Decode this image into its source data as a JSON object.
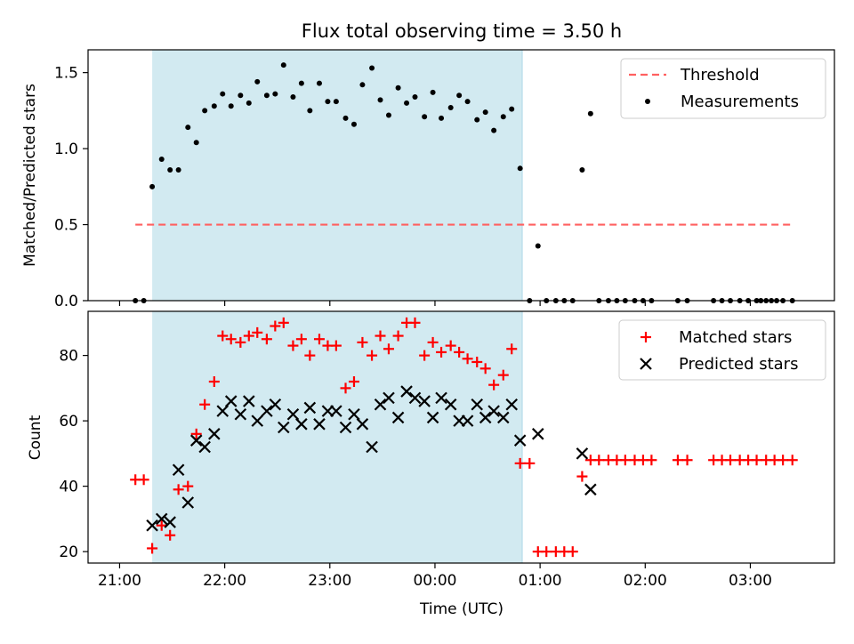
{
  "figure_title": "Flux total observing time = 3.50 h",
  "xlabel": "Time (UTC)",
  "x_tick_labels": [
    "21:00",
    "22:00",
    "23:00",
    "00:00",
    "01:00",
    "02:00",
    "03:00"
  ],
  "chart_data": [
    {
      "type": "scatter",
      "title": "Flux total observing time = 3.50 h",
      "ylabel": "Matched/Predicted stars",
      "xlim": [
        -0.3,
        6.8
      ],
      "ylim": [
        0,
        1.65
      ],
      "y_ticks": [
        0.0,
        0.5,
        1.0,
        1.5
      ],
      "y_tick_labels": [
        "0.0",
        "0.5",
        "1.0",
        "1.5"
      ],
      "legend_position": "top-right",
      "shaded_interval": [
        0.31,
        3.83
      ],
      "shaded_color": "#add8e6",
      "threshold": {
        "name": "Threshold",
        "y": 0.5,
        "x_start": 0.15,
        "x_end": 6.38,
        "color": "#ff6060",
        "style": "dashed"
      },
      "series": [
        {
          "name": "Measurements",
          "color": "#000000",
          "points": [
            [
              0.15,
              0.0
            ],
            [
              0.23,
              0.0
            ],
            [
              0.31,
              0.75
            ],
            [
              0.4,
              0.93
            ],
            [
              0.48,
              0.86
            ],
            [
              0.56,
              0.86
            ],
            [
              0.65,
              1.14
            ],
            [
              0.73,
              1.04
            ],
            [
              0.81,
              1.25
            ],
            [
              0.9,
              1.28
            ],
            [
              0.98,
              1.36
            ],
            [
              1.06,
              1.28
            ],
            [
              1.15,
              1.35
            ],
            [
              1.23,
              1.3
            ],
            [
              1.31,
              1.44
            ],
            [
              1.4,
              1.35
            ],
            [
              1.48,
              1.36
            ],
            [
              1.56,
              1.55
            ],
            [
              1.65,
              1.34
            ],
            [
              1.73,
              1.43
            ],
            [
              1.81,
              1.25
            ],
            [
              1.9,
              1.43
            ],
            [
              1.98,
              1.31
            ],
            [
              2.06,
              1.31
            ],
            [
              2.15,
              1.2
            ],
            [
              2.23,
              1.16
            ],
            [
              2.31,
              1.42
            ],
            [
              2.4,
              1.53
            ],
            [
              2.48,
              1.32
            ],
            [
              2.56,
              1.22
            ],
            [
              2.65,
              1.4
            ],
            [
              2.73,
              1.3
            ],
            [
              2.81,
              1.34
            ],
            [
              2.9,
              1.21
            ],
            [
              2.98,
              1.37
            ],
            [
              3.06,
              1.2
            ],
            [
              3.15,
              1.27
            ],
            [
              3.23,
              1.35
            ],
            [
              3.31,
              1.31
            ],
            [
              3.4,
              1.19
            ],
            [
              3.48,
              1.24
            ],
            [
              3.56,
              1.12
            ],
            [
              3.65,
              1.21
            ],
            [
              3.73,
              1.26
            ],
            [
              3.81,
              0.87
            ],
            [
              3.9,
              0.0
            ],
            [
              3.98,
              0.36
            ],
            [
              4.06,
              0.0
            ],
            [
              4.15,
              0.0
            ],
            [
              4.23,
              0.0
            ],
            [
              4.31,
              0.0
            ],
            [
              4.4,
              0.86
            ],
            [
              4.48,
              1.23
            ],
            [
              4.56,
              0.0
            ],
            [
              4.65,
              0.0
            ],
            [
              4.73,
              0.0
            ],
            [
              4.81,
              0.0
            ],
            [
              4.9,
              0.0
            ],
            [
              4.98,
              0.0
            ],
            [
              5.06,
              0.0
            ],
            [
              5.31,
              0.0
            ],
            [
              5.4,
              0.0
            ],
            [
              5.65,
              0.0
            ],
            [
              5.73,
              0.0
            ],
            [
              5.81,
              0.0
            ],
            [
              5.9,
              0.0
            ],
            [
              5.98,
              0.0
            ],
            [
              6.06,
              0.0
            ],
            [
              6.1,
              0.0
            ],
            [
              6.15,
              0.0
            ],
            [
              6.2,
              0.0
            ],
            [
              6.25,
              0.0
            ],
            [
              6.31,
              0.0
            ],
            [
              6.4,
              0.0
            ]
          ]
        }
      ]
    },
    {
      "type": "scatter",
      "ylabel": "Count",
      "xlim": [
        -0.3,
        6.8
      ],
      "ylim": [
        16.5,
        93.5
      ],
      "y_ticks": [
        20,
        40,
        60,
        80
      ],
      "y_tick_labels": [
        "20",
        "40",
        "60",
        "80"
      ],
      "legend_position": "top-right",
      "shaded_interval": [
        0.31,
        3.83
      ],
      "shaded_color": "#add8e6",
      "series": [
        {
          "name": "Matched stars",
          "marker": "plus",
          "color": "#ff0000",
          "points": [
            [
              0.15,
              42
            ],
            [
              0.23,
              42
            ],
            [
              0.31,
              21
            ],
            [
              0.4,
              28
            ],
            [
              0.48,
              25
            ],
            [
              0.56,
              39
            ],
            [
              0.65,
              40
            ],
            [
              0.73,
              56
            ],
            [
              0.81,
              65
            ],
            [
              0.9,
              72
            ],
            [
              0.98,
              86
            ],
            [
              1.06,
              85
            ],
            [
              1.15,
              84
            ],
            [
              1.23,
              86
            ],
            [
              1.31,
              87
            ],
            [
              1.4,
              85
            ],
            [
              1.48,
              89
            ],
            [
              1.56,
              90
            ],
            [
              1.65,
              83
            ],
            [
              1.73,
              85
            ],
            [
              1.81,
              80
            ],
            [
              1.9,
              85
            ],
            [
              1.98,
              83
            ],
            [
              2.06,
              83
            ],
            [
              2.15,
              70
            ],
            [
              2.23,
              72
            ],
            [
              2.31,
              84
            ],
            [
              2.4,
              80
            ],
            [
              2.48,
              86
            ],
            [
              2.56,
              82
            ],
            [
              2.65,
              86
            ],
            [
              2.73,
              90
            ],
            [
              2.81,
              90
            ],
            [
              2.9,
              80
            ],
            [
              2.98,
              84
            ],
            [
              3.06,
              81
            ],
            [
              3.15,
              83
            ],
            [
              3.23,
              81
            ],
            [
              3.31,
              79
            ],
            [
              3.4,
              78
            ],
            [
              3.48,
              76
            ],
            [
              3.56,
              71
            ],
            [
              3.65,
              74
            ],
            [
              3.73,
              82
            ],
            [
              3.81,
              47
            ],
            [
              3.9,
              47
            ],
            [
              3.98,
              20
            ],
            [
              4.06,
              20
            ],
            [
              4.15,
              20
            ],
            [
              4.23,
              20
            ],
            [
              4.31,
              20
            ],
            [
              4.4,
              43
            ],
            [
              4.48,
              48
            ],
            [
              4.56,
              48
            ],
            [
              4.65,
              48
            ],
            [
              4.73,
              48
            ],
            [
              4.81,
              48
            ],
            [
              4.9,
              48
            ],
            [
              4.98,
              48
            ],
            [
              5.06,
              48
            ],
            [
              5.31,
              48
            ],
            [
              5.4,
              48
            ],
            [
              5.65,
              48
            ],
            [
              5.73,
              48
            ],
            [
              5.81,
              48
            ],
            [
              5.9,
              48
            ],
            [
              5.98,
              48
            ],
            [
              6.06,
              48
            ],
            [
              6.15,
              48
            ],
            [
              6.23,
              48
            ],
            [
              6.31,
              48
            ],
            [
              6.4,
              48
            ]
          ]
        },
        {
          "name": "Predicted stars",
          "marker": "x",
          "color": "#000000",
          "points": [
            [
              0.31,
              28
            ],
            [
              0.4,
              30
            ],
            [
              0.48,
              29
            ],
            [
              0.56,
              45
            ],
            [
              0.65,
              35
            ],
            [
              0.73,
              54
            ],
            [
              0.81,
              52
            ],
            [
              0.9,
              56
            ],
            [
              0.98,
              63
            ],
            [
              1.06,
              66
            ],
            [
              1.15,
              62
            ],
            [
              1.23,
              66
            ],
            [
              1.31,
              60
            ],
            [
              1.4,
              63
            ],
            [
              1.48,
              65
            ],
            [
              1.56,
              58
            ],
            [
              1.65,
              62
            ],
            [
              1.73,
              59
            ],
            [
              1.81,
              64
            ],
            [
              1.9,
              59
            ],
            [
              1.98,
              63
            ],
            [
              2.06,
              63
            ],
            [
              2.15,
              58
            ],
            [
              2.23,
              62
            ],
            [
              2.31,
              59
            ],
            [
              2.4,
              52
            ],
            [
              2.48,
              65
            ],
            [
              2.56,
              67
            ],
            [
              2.65,
              61
            ],
            [
              2.73,
              69
            ],
            [
              2.81,
              67
            ],
            [
              2.9,
              66
            ],
            [
              2.98,
              61
            ],
            [
              3.06,
              67
            ],
            [
              3.15,
              65
            ],
            [
              3.23,
              60
            ],
            [
              3.31,
              60
            ],
            [
              3.4,
              65
            ],
            [
              3.48,
              61
            ],
            [
              3.56,
              63
            ],
            [
              3.65,
              61
            ],
            [
              3.73,
              65
            ],
            [
              3.81,
              54
            ],
            [
              3.98,
              56
            ],
            [
              4.4,
              50
            ],
            [
              4.48,
              39
            ]
          ]
        }
      ]
    }
  ]
}
